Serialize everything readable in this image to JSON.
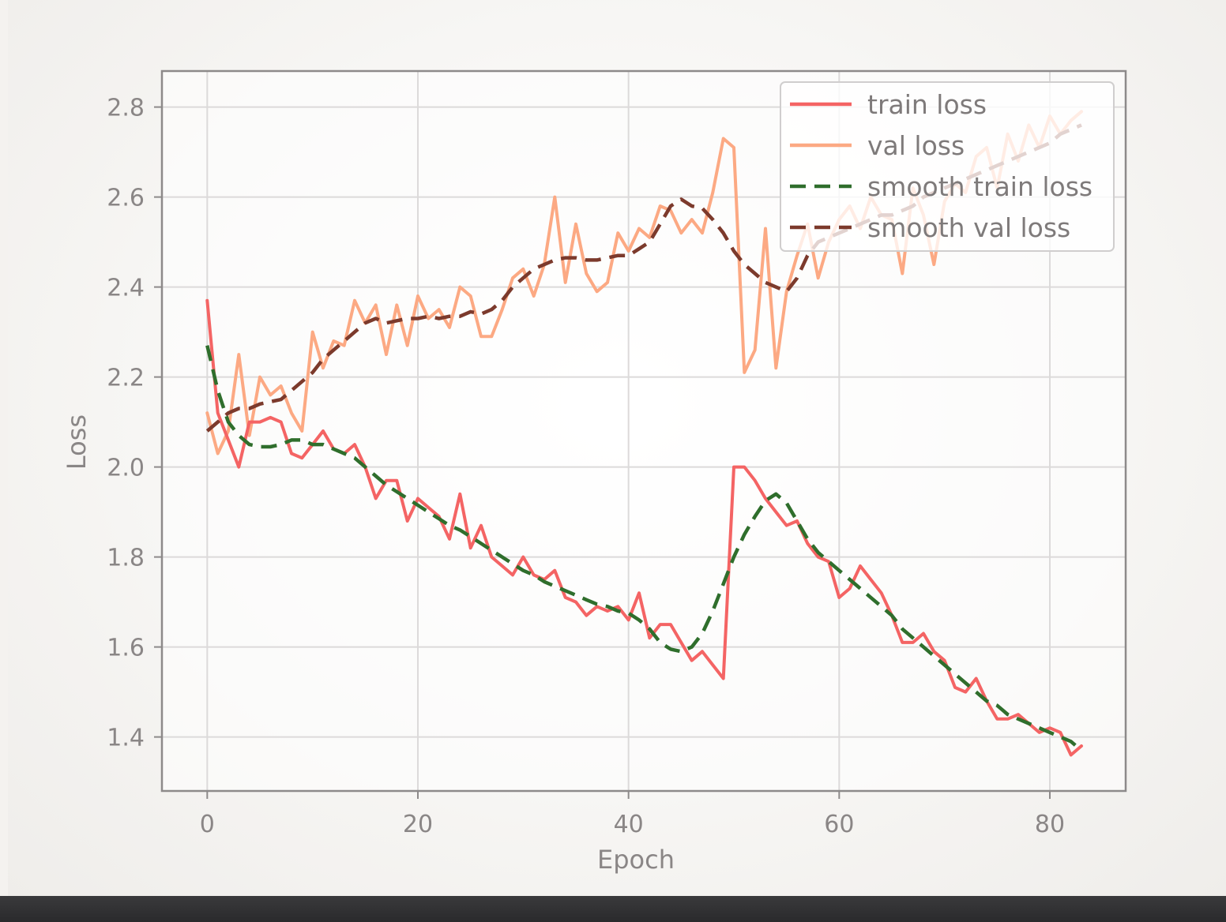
{
  "chart_data": {
    "type": "line",
    "xlabel": "Epoch",
    "ylabel": "Loss",
    "xlim": [
      -4.3,
      87.2
    ],
    "ylim": [
      1.28,
      2.88
    ],
    "xticks": [
      0,
      20,
      40,
      60,
      80
    ],
    "yticks": [
      1.4,
      1.6,
      1.8,
      2.0,
      2.2,
      2.4,
      2.6,
      2.8
    ],
    "xtick_labels": [
      "0",
      "20",
      "40",
      "60",
      "80"
    ],
    "ytick_labels": [
      "1.4",
      "1.6",
      "1.8",
      "2.0",
      "2.2",
      "2.4",
      "2.6",
      "2.8"
    ],
    "grid": true,
    "legend_position": "top-right",
    "series": [
      {
        "name": "train loss",
        "style": "solid",
        "color": "#f46464",
        "x": [
          0,
          1,
          2,
          3,
          4,
          5,
          6,
          7,
          8,
          9,
          10,
          11,
          12,
          13,
          14,
          15,
          16,
          17,
          18,
          19,
          20,
          21,
          22,
          23,
          24,
          25,
          26,
          27,
          28,
          29,
          30,
          31,
          32,
          33,
          34,
          35,
          36,
          37,
          38,
          39,
          40,
          41,
          42,
          43,
          44,
          45,
          46,
          47,
          48,
          49,
          50,
          51,
          52,
          53,
          54,
          55,
          56,
          57,
          58,
          59,
          60,
          61,
          62,
          63,
          64,
          65,
          66,
          67,
          68,
          69,
          70,
          71,
          72,
          73,
          74,
          75,
          76,
          77,
          78,
          79,
          80,
          81,
          82,
          83
        ],
        "y": [
          2.37,
          2.12,
          2.06,
          2.0,
          2.1,
          2.1,
          2.11,
          2.1,
          2.03,
          2.02,
          2.05,
          2.08,
          2.04,
          2.03,
          2.05,
          2.0,
          1.93,
          1.97,
          1.97,
          1.88,
          1.93,
          1.91,
          1.89,
          1.84,
          1.94,
          1.82,
          1.87,
          1.8,
          1.78,
          1.76,
          1.8,
          1.76,
          1.75,
          1.77,
          1.71,
          1.7,
          1.67,
          1.69,
          1.68,
          1.69,
          1.66,
          1.72,
          1.62,
          1.65,
          1.65,
          1.61,
          1.57,
          1.59,
          1.56,
          1.53,
          2.0,
          2.0,
          1.97,
          1.93,
          1.9,
          1.87,
          1.88,
          1.83,
          1.8,
          1.79,
          1.71,
          1.73,
          1.78,
          1.75,
          1.72,
          1.67,
          1.61,
          1.61,
          1.63,
          1.59,
          1.57,
          1.51,
          1.5,
          1.53,
          1.48,
          1.44,
          1.44,
          1.45,
          1.43,
          1.41,
          1.42,
          1.41,
          1.36,
          1.38
        ]
      },
      {
        "name": "val loss",
        "style": "solid",
        "color": "#fca983",
        "x": [
          0,
          1,
          2,
          3,
          4,
          5,
          6,
          7,
          8,
          9,
          10,
          11,
          12,
          13,
          14,
          15,
          16,
          17,
          18,
          19,
          20,
          21,
          22,
          23,
          24,
          25,
          26,
          27,
          28,
          29,
          30,
          31,
          32,
          33,
          34,
          35,
          36,
          37,
          38,
          39,
          40,
          41,
          42,
          43,
          44,
          45,
          46,
          47,
          48,
          49,
          50,
          51,
          52,
          53,
          54,
          55,
          56,
          57,
          58,
          59,
          60,
          61,
          62,
          63,
          64,
          65,
          66,
          67,
          68,
          69,
          70,
          71,
          72,
          73,
          74,
          75,
          76,
          77,
          78,
          79,
          80,
          81,
          82,
          83
        ],
        "y": [
          2.12,
          2.03,
          2.08,
          2.25,
          2.07,
          2.2,
          2.16,
          2.18,
          2.12,
          2.08,
          2.3,
          2.22,
          2.28,
          2.27,
          2.37,
          2.32,
          2.36,
          2.25,
          2.36,
          2.27,
          2.38,
          2.33,
          2.35,
          2.31,
          2.4,
          2.38,
          2.29,
          2.29,
          2.35,
          2.42,
          2.44,
          2.38,
          2.45,
          2.6,
          2.41,
          2.54,
          2.43,
          2.39,
          2.41,
          2.52,
          2.48,
          2.53,
          2.51,
          2.58,
          2.57,
          2.52,
          2.55,
          2.52,
          2.61,
          2.73,
          2.71,
          2.21,
          2.26,
          2.53,
          2.22,
          2.39,
          2.47,
          2.54,
          2.42,
          2.5,
          2.55,
          2.58,
          2.53,
          2.6,
          2.56,
          2.55,
          2.43,
          2.62,
          2.56,
          2.45,
          2.59,
          2.63,
          2.61,
          2.69,
          2.71,
          2.62,
          2.74,
          2.68,
          2.76,
          2.71,
          2.78,
          2.74,
          2.77,
          2.79
        ]
      },
      {
        "name": "smooth train loss",
        "style": "dashed",
        "color": "#2f6e2c",
        "x": [
          0,
          1,
          2,
          3,
          4,
          5,
          6,
          7,
          8,
          9,
          10,
          11,
          12,
          13,
          14,
          15,
          16,
          17,
          18,
          19,
          20,
          21,
          22,
          23,
          24,
          25,
          26,
          27,
          28,
          29,
          30,
          31,
          32,
          33,
          34,
          35,
          36,
          37,
          38,
          39,
          40,
          41,
          42,
          43,
          44,
          45,
          46,
          47,
          48,
          49,
          50,
          51,
          52,
          53,
          54,
          55,
          56,
          57,
          58,
          59,
          60,
          61,
          62,
          63,
          64,
          65,
          66,
          67,
          68,
          69,
          70,
          71,
          72,
          73,
          74,
          75,
          76,
          77,
          78,
          79,
          80,
          81,
          82,
          83
        ],
        "y": [
          2.27,
          2.17,
          2.1,
          2.07,
          2.05,
          2.045,
          2.045,
          2.05,
          2.06,
          2.06,
          2.05,
          2.05,
          2.04,
          2.03,
          2.02,
          2.0,
          1.98,
          1.96,
          1.945,
          1.93,
          1.915,
          1.9,
          1.885,
          1.87,
          1.86,
          1.845,
          1.83,
          1.815,
          1.8,
          1.785,
          1.77,
          1.76,
          1.745,
          1.735,
          1.725,
          1.715,
          1.705,
          1.695,
          1.69,
          1.68,
          1.675,
          1.66,
          1.64,
          1.61,
          1.595,
          1.59,
          1.6,
          1.63,
          1.68,
          1.74,
          1.8,
          1.85,
          1.89,
          1.925,
          1.94,
          1.92,
          1.88,
          1.84,
          1.81,
          1.79,
          1.77,
          1.75,
          1.73,
          1.71,
          1.69,
          1.67,
          1.64,
          1.62,
          1.6,
          1.58,
          1.56,
          1.54,
          1.52,
          1.5,
          1.48,
          1.47,
          1.45,
          1.44,
          1.43,
          1.42,
          1.41,
          1.4,
          1.39,
          1.37
        ]
      },
      {
        "name": "smooth val loss",
        "style": "dashed",
        "color": "#7c3a2c",
        "x": [
          0,
          1,
          2,
          3,
          4,
          5,
          6,
          7,
          8,
          9,
          10,
          11,
          12,
          13,
          14,
          15,
          16,
          17,
          18,
          19,
          20,
          21,
          22,
          23,
          24,
          25,
          26,
          27,
          28,
          29,
          30,
          31,
          32,
          33,
          34,
          35,
          36,
          37,
          38,
          39,
          40,
          41,
          42,
          43,
          44,
          45,
          46,
          47,
          48,
          49,
          50,
          51,
          52,
          53,
          54,
          55,
          56,
          57,
          58,
          59,
          60,
          61,
          62,
          63,
          64,
          65,
          66,
          67,
          68,
          69,
          70,
          71,
          72,
          73,
          74,
          75,
          76,
          77,
          78,
          79,
          80,
          81,
          82,
          83
        ],
        "y": [
          2.08,
          2.1,
          2.12,
          2.13,
          2.13,
          2.14,
          2.145,
          2.15,
          2.17,
          2.19,
          2.21,
          2.24,
          2.26,
          2.28,
          2.3,
          2.32,
          2.33,
          2.32,
          2.325,
          2.33,
          2.33,
          2.335,
          2.33,
          2.335,
          2.335,
          2.345,
          2.34,
          2.35,
          2.37,
          2.4,
          2.42,
          2.44,
          2.45,
          2.46,
          2.465,
          2.465,
          2.46,
          2.46,
          2.465,
          2.47,
          2.47,
          2.485,
          2.5,
          2.54,
          2.58,
          2.595,
          2.58,
          2.575,
          2.55,
          2.52,
          2.48,
          2.45,
          2.43,
          2.41,
          2.4,
          2.39,
          2.42,
          2.47,
          2.5,
          2.51,
          2.52,
          2.53,
          2.54,
          2.55,
          2.56,
          2.56,
          2.57,
          2.58,
          2.6,
          2.61,
          2.62,
          2.63,
          2.64,
          2.65,
          2.66,
          2.67,
          2.68,
          2.69,
          2.7,
          2.71,
          2.72,
          2.74,
          2.75,
          2.76
        ]
      }
    ]
  }
}
